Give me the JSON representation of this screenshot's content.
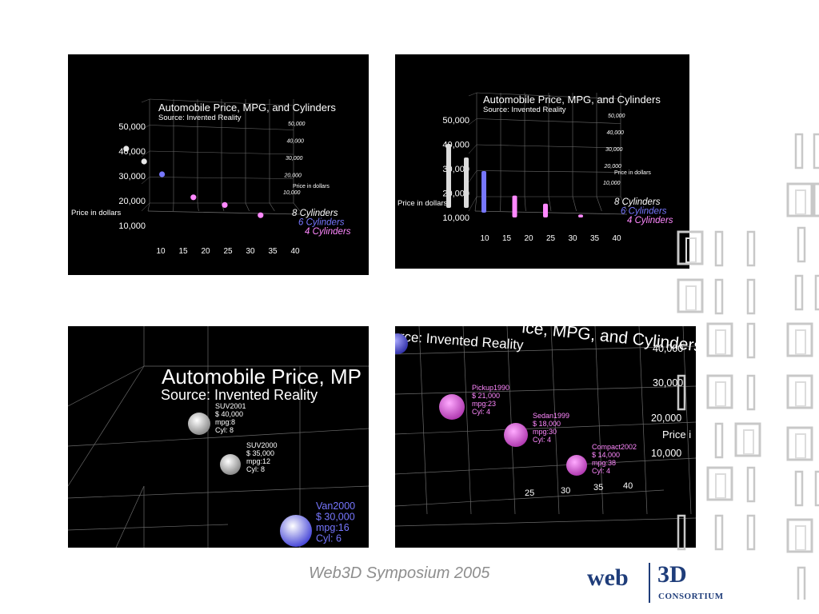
{
  "chart_data": [
    {
      "type": "scatter",
      "title": "Automobile Price, MPG, and Cylinders",
      "subtitle": "Source: Invented Reality",
      "ylabel": "Price in dollars",
      "y_ticks": [
        "50,000",
        "40,000",
        "30,000",
        "20,000",
        "10,000"
      ],
      "x_ticks": [
        "10",
        "15",
        "20",
        "25",
        "30",
        "35",
        "40"
      ],
      "back_ticks": [
        "50,000",
        "40,000",
        "30,000",
        "20,000",
        "10,000"
      ],
      "back_label": "Price in dollars",
      "series": [
        {
          "name": "8 Cylinders",
          "color": "#ffffff",
          "points": [
            [
              8,
              40000
            ],
            [
              12,
              35000
            ]
          ]
        },
        {
          "name": "6 Cylinders",
          "color": "#7777ff",
          "points": [
            [
              16,
              30000
            ]
          ]
        },
        {
          "name": "4 Cylinders",
          "color": "#ff88ff",
          "points": [
            [
              23,
              21000
            ],
            [
              30,
              18000
            ],
            [
              38,
              14000
            ]
          ]
        }
      ]
    },
    {
      "type": "bar",
      "title": "Automobile Price, MPG, and Cylinders",
      "subtitle": "Source: Invented Reality",
      "ylabel": "Price in dollars",
      "y_ticks": [
        "50,000",
        "40,000",
        "30,000",
        "20,000",
        "10,000"
      ],
      "x_ticks": [
        "10",
        "15",
        "20",
        "25",
        "30",
        "35",
        "40"
      ],
      "back_ticks": [
        "50,000",
        "40,000",
        "30,000",
        "20,000",
        "10,000"
      ],
      "back_label": "Price in dollars",
      "series": [
        {
          "name": "8 Cylinders",
          "color": "#ffffff",
          "points": [
            [
              8,
              40000
            ],
            [
              12,
              35000
            ]
          ]
        },
        {
          "name": "6 Cylinders",
          "color": "#7777ff",
          "points": [
            [
              16,
              30000
            ]
          ]
        },
        {
          "name": "4 Cylinders",
          "color": "#ff88ff",
          "points": [
            [
              23,
              21000
            ],
            [
              30,
              18000
            ],
            [
              38,
              14000
            ]
          ]
        }
      ]
    },
    {
      "type": "scatter",
      "view": "zoomed-left",
      "title": "Automobile Price, MP",
      "subtitle": "Source: Invented Reality",
      "points": [
        {
          "name": "SUV2001",
          "lines": [
            "SUV2001",
            "$  40,000",
            "mpg:8",
            "Cyl:  8"
          ],
          "color": "#ffffff"
        },
        {
          "name": "SUV2000",
          "lines": [
            "SUV2000",
            "$  35,000",
            "mpg:12",
            "Cyl:  8"
          ],
          "color": "#ffffff"
        },
        {
          "name": "Van2000",
          "lines": [
            "Van2000",
            "$  30,000",
            "mpg:16",
            "Cyl:  6"
          ],
          "color": "#7777ff"
        }
      ]
    },
    {
      "type": "scatter",
      "view": "zoomed-right",
      "title": "urce: Invented Reality",
      "title2": "ice, MPG, and Cylinders",
      "y_ticks": [
        "40,000",
        "30,000",
        "20,000",
        "10,000"
      ],
      "ylabel": "Price i",
      "x_ticks": [
        "25",
        "30",
        "35",
        "40"
      ],
      "points": [
        {
          "name": "Pickup1990",
          "lines": [
            "Pickup1990",
            "$  21,000",
            "mpg:23",
            "Cyl:  4"
          ],
          "color": "#ff88ff"
        },
        {
          "name": "Sedan1999",
          "lines": [
            "Sedan1999",
            "$  18,000",
            "mpg:30",
            "Cyl:  4"
          ],
          "color": "#ff88ff"
        },
        {
          "name": "Compact2002",
          "lines": [
            "Compact2002",
            "$  14,000",
            "mpg:38",
            "Cyl:  4"
          ],
          "color": "#ff88ff"
        }
      ]
    }
  ],
  "footer": {
    "title": "Web3D Symposium 2005",
    "logo_web": "web",
    "logo_3d": "3D",
    "logo_consortium": "CONSORTIUM"
  },
  "colors": {
    "background": "#ffffff",
    "panel": "#000000",
    "grid": "#6a6a6a",
    "brand": "#1f3d7a",
    "footer_text": "#8e8e8e"
  }
}
